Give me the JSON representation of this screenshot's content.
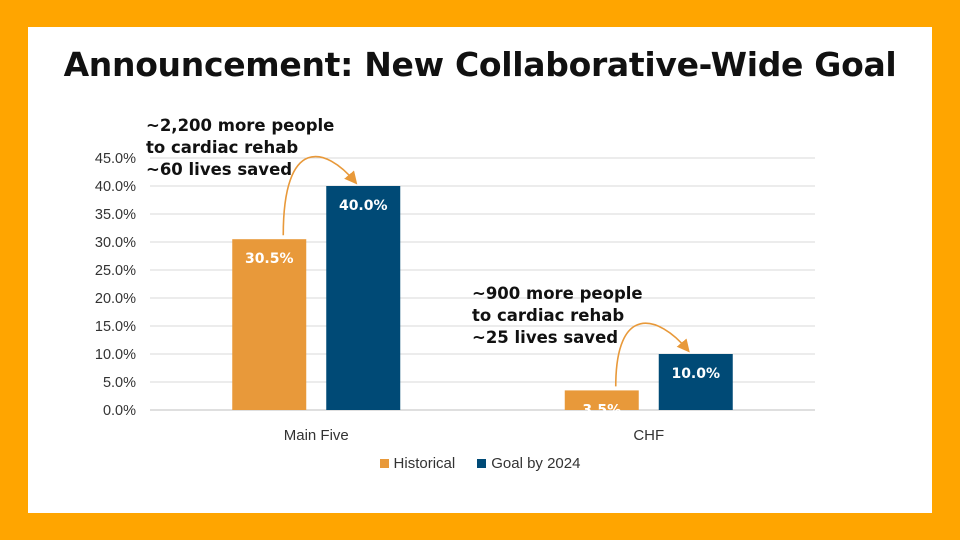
{
  "title": "Announcement: New Collaborative-Wide Goal",
  "chart_data": {
    "type": "bar",
    "categories": [
      "Main Five",
      "CHF"
    ],
    "series": [
      {
        "name": "Historical",
        "values": [
          30.5,
          3.5
        ],
        "color": "#E8993A",
        "labels": [
          "30.5%",
          "3.5%"
        ]
      },
      {
        "name": "Goal by 2024",
        "values": [
          40.0,
          10.0
        ],
        "color": "#004A76",
        "labels": [
          "40.0%",
          "10.0%"
        ]
      }
    ],
    "yticks": [
      0,
      5,
      10,
      15,
      20,
      25,
      30,
      35,
      40,
      45
    ],
    "ytick_labels": [
      "0.0%",
      "5.0%",
      "10.0%",
      "15.0%",
      "20.0%",
      "25.0%",
      "30.0%",
      "35.0%",
      "40.0%",
      "45.0%"
    ],
    "ylim": [
      0,
      45
    ],
    "grid": true,
    "legend": "bottom",
    "annotations": [
      {
        "category": "Main Five",
        "lines": [
          "~2,200 more people",
          "to cardiac rehab",
          "~60 lives saved"
        ]
      },
      {
        "category": "CHF",
        "lines": [
          "~900 more people",
          "to cardiac rehab",
          "~25 lives saved"
        ]
      }
    ],
    "arrow_color": "#E8993A"
  }
}
